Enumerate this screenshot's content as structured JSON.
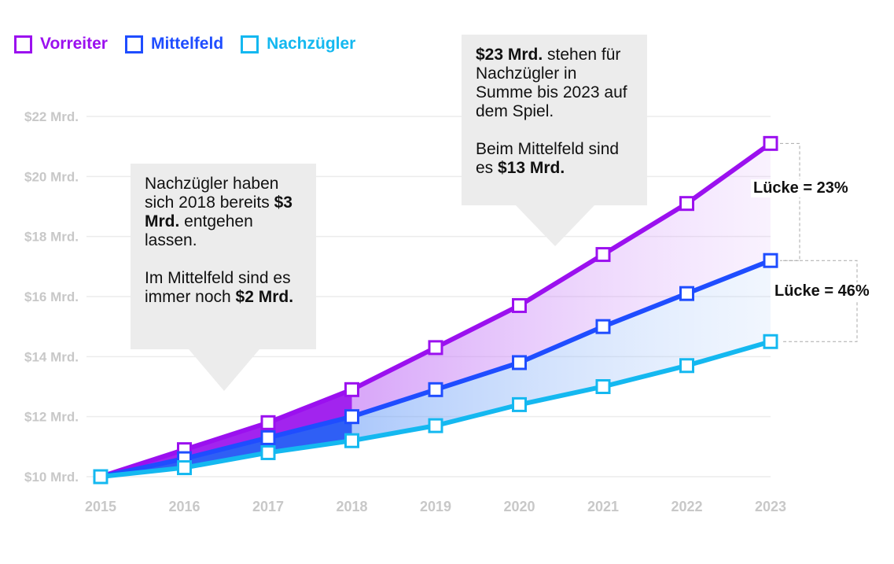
{
  "legend": [
    {
      "label": "Vorreiter",
      "color": "#9b10ef"
    },
    {
      "label": "Mittelfeld",
      "color": "#1f4dff"
    },
    {
      "label": "Nachzügler",
      "color": "#14b8f0"
    }
  ],
  "callout1": {
    "p1_pre": "Nachzügler haben sich 2018 bereits ",
    "p1_bold": "$3 Mrd.",
    "p1_post": " entgehen lassen.",
    "p2_pre": "Im Mittelfeld sind es immer noch ",
    "p2_bold": "$2 Mrd."
  },
  "callout2": {
    "p1_bold": "$23 Mrd.",
    "p1_post": " stehen für Nachzügler in Summe bis 2023 auf dem Spiel.",
    "p2_pre": "Beim Mittelfeld sind es ",
    "p2_bold": "$13 Mrd."
  },
  "gaps": [
    "Lücke = 23%",
    "Lücke = 46%"
  ],
  "chart_data": {
    "type": "line",
    "x": [
      2015,
      2016,
      2017,
      2018,
      2019,
      2020,
      2021,
      2022,
      2023
    ],
    "ylim": [
      10,
      22
    ],
    "yticks": [
      "$10 Mrd.",
      "$12 Mrd.",
      "$14 Mrd.",
      "$16 Mrd.",
      "$18 Mrd.",
      "$20 Mrd.",
      "$22 Mrd."
    ],
    "grid": true,
    "legend_position": "top-left",
    "series": [
      {
        "name": "Vorreiter",
        "color": "#9b10ef",
        "values": [
          10,
          10.9,
          11.8,
          12.9,
          14.3,
          15.7,
          17.4,
          19.1,
          21.1
        ]
      },
      {
        "name": "Mittelfeld",
        "color": "#1f4dff",
        "values": [
          10,
          10.6,
          11.3,
          12.0,
          12.9,
          13.8,
          15.0,
          16.1,
          17.2
        ]
      },
      {
        "name": "Nachzügler",
        "color": "#14b8f0",
        "values": [
          10,
          10.3,
          10.8,
          11.2,
          11.7,
          12.4,
          13.0,
          13.7,
          14.5
        ]
      }
    ]
  }
}
